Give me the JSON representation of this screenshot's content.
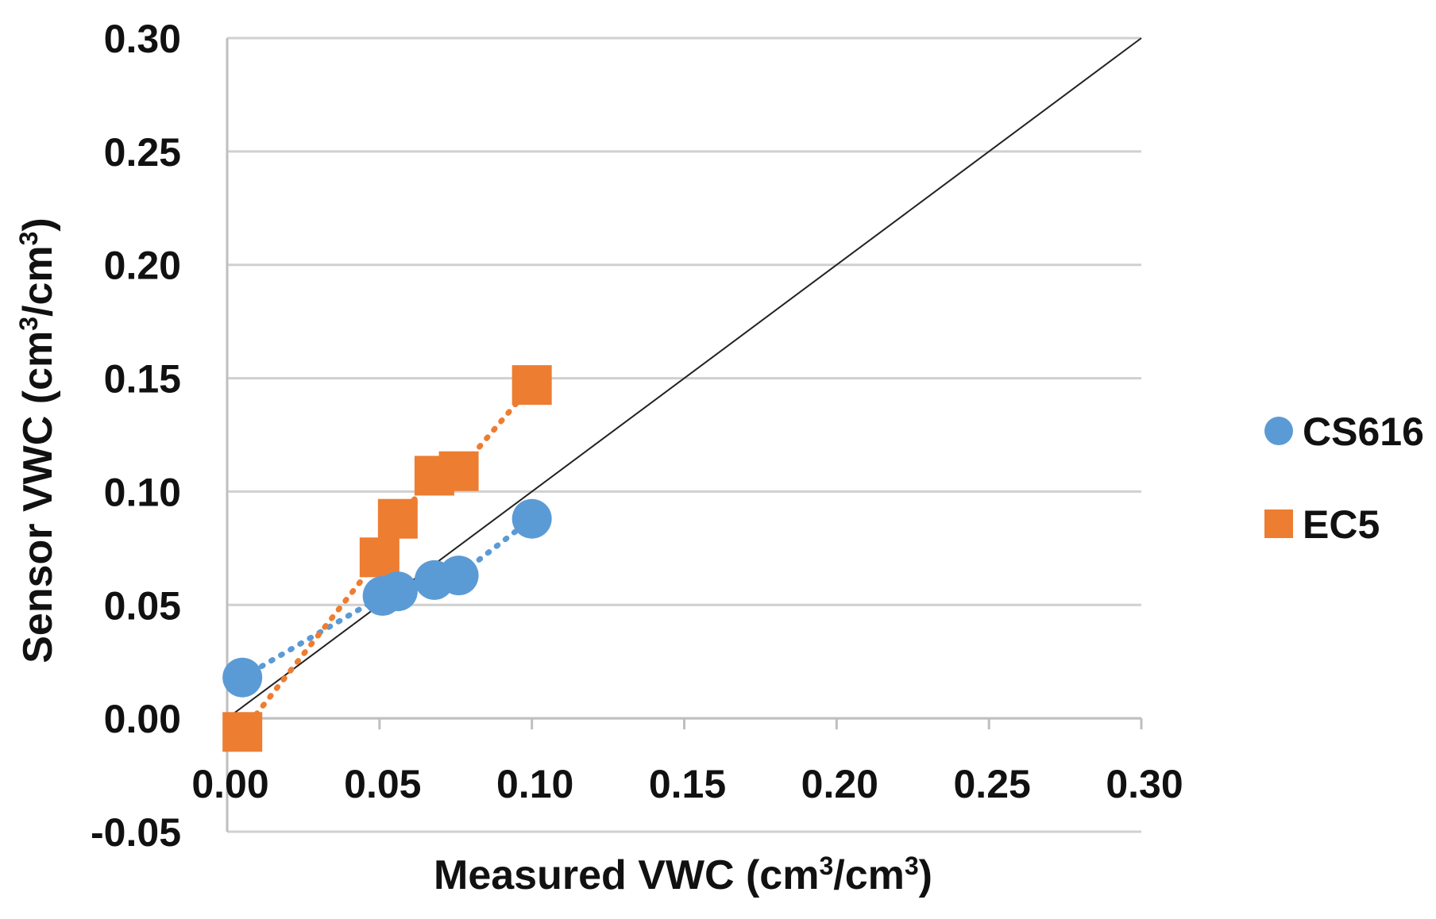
{
  "chart_data": {
    "type": "scatter",
    "title": "",
    "xlabel": {
      "prefix": "Measured VWC (cm",
      "sup1": "3",
      "mid": "/cm",
      "sup2": "3",
      "suffix": ")"
    },
    "ylabel": {
      "prefix": "Sensor VWC (cm",
      "sup1": "3",
      "mid": "/cm",
      "sup2": "3",
      "suffix": ")"
    },
    "xlim": [
      0.0,
      0.3
    ],
    "ylim": [
      -0.05,
      0.3
    ],
    "x_ticks": [
      "0.00",
      "0.05",
      "0.10",
      "0.15",
      "0.20",
      "0.25",
      "0.30"
    ],
    "y_ticks": [
      "0.30",
      "0.25",
      "0.20",
      "0.15",
      "0.10",
      "0.05",
      "0.00",
      "-0.05"
    ],
    "grid": true,
    "legend_position": "right",
    "reference_line": {
      "name": "1:1 line",
      "x": [
        0.0,
        0.3
      ],
      "y": [
        0.0,
        0.3
      ],
      "color": "#222222"
    },
    "series": [
      {
        "name": "CS616",
        "marker": "circle",
        "color": "#5b9bd5",
        "trendline": "dotted",
        "points": [
          {
            "x": 0.005,
            "y": 0.018
          },
          {
            "x": 0.051,
            "y": 0.054
          },
          {
            "x": 0.056,
            "y": 0.056
          },
          {
            "x": 0.068,
            "y": 0.061
          },
          {
            "x": 0.076,
            "y": 0.063
          },
          {
            "x": 0.1,
            "y": 0.088
          }
        ]
      },
      {
        "name": "EC5",
        "marker": "square",
        "color": "#ed7d31",
        "trendline": "dotted",
        "points": [
          {
            "x": 0.005,
            "y": -0.006
          },
          {
            "x": 0.05,
            "y": 0.071
          },
          {
            "x": 0.056,
            "y": 0.088
          },
          {
            "x": 0.068,
            "y": 0.107
          },
          {
            "x": 0.076,
            "y": 0.109
          },
          {
            "x": 0.1,
            "y": 0.147
          }
        ]
      }
    ]
  }
}
